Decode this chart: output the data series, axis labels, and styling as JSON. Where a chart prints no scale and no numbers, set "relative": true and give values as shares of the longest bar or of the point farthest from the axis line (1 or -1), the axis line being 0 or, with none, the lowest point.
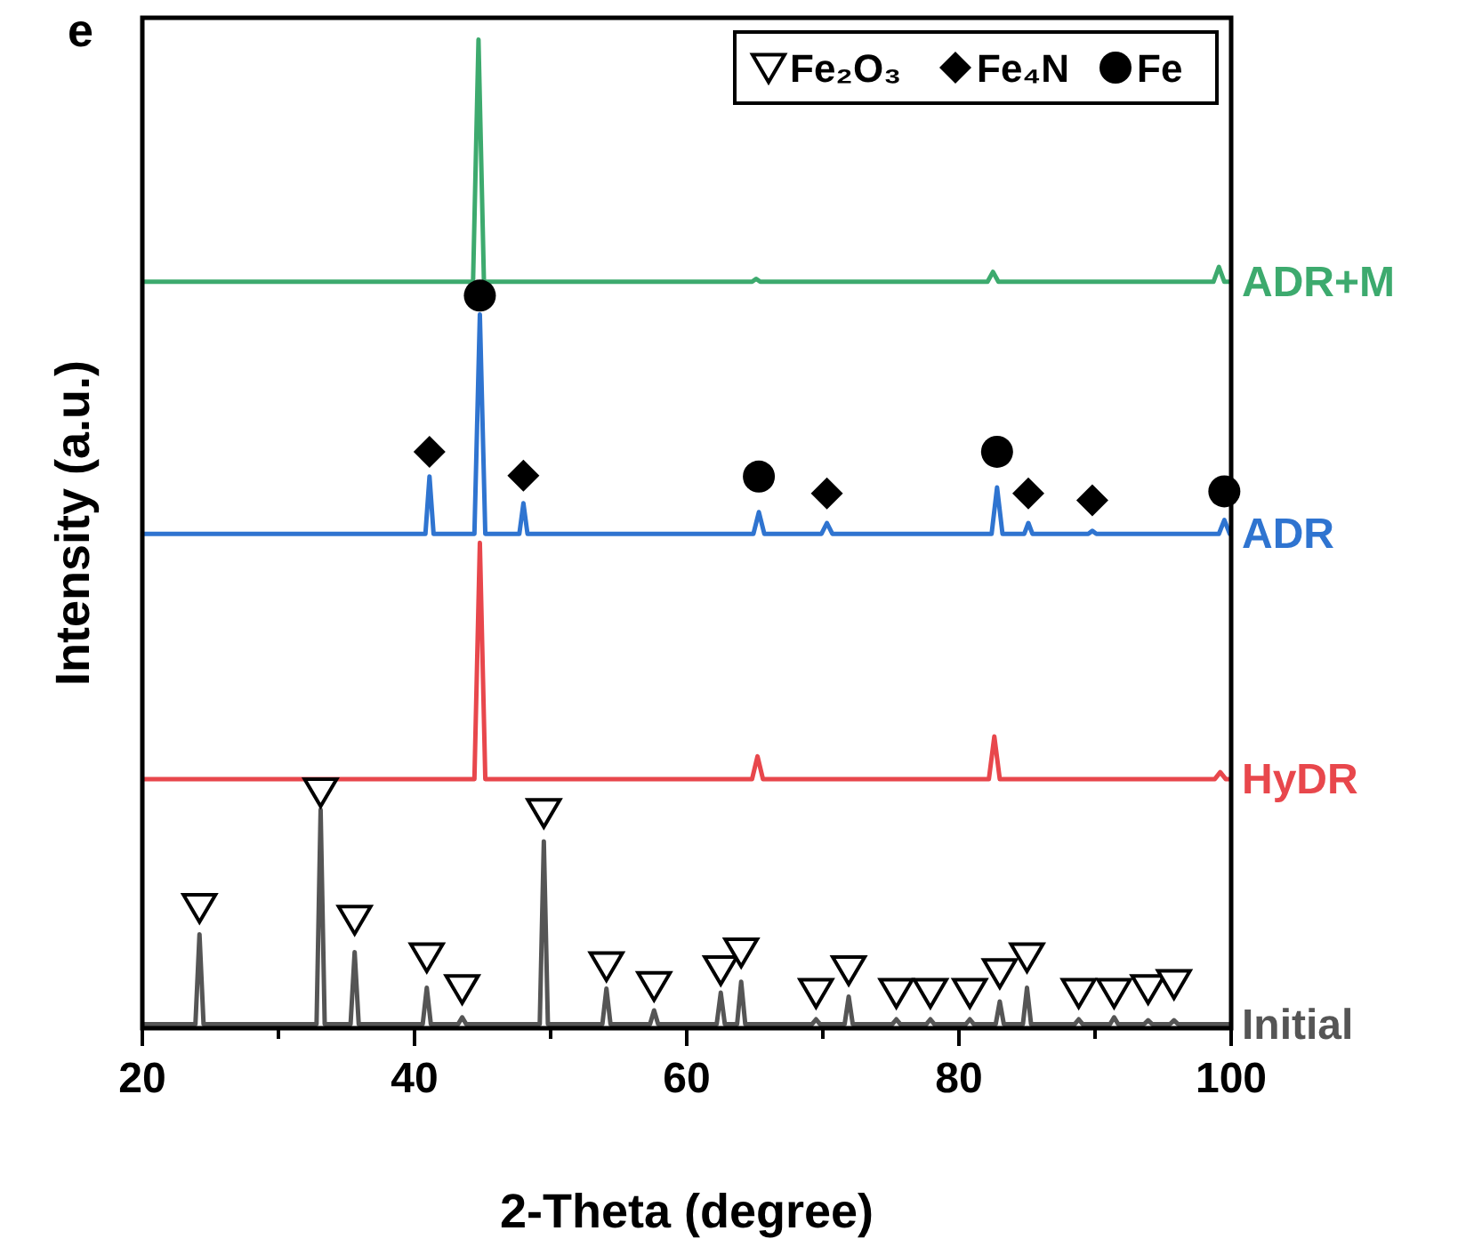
{
  "chart_data": {
    "type": "line",
    "relative": true,
    "xlabel": "2-Theta (degree)",
    "ylabel": "Intensity (a.u.)",
    "annotations": [
      "e"
    ],
    "xlim": [
      20,
      100
    ],
    "xticks": [
      20,
      {
        "value": 30,
        "label": null
      },
      40,
      {
        "value": 50,
        "label": null
      },
      60,
      {
        "value": 70,
        "label": null
      },
      80,
      {
        "value": 90,
        "label": null
      },
      100
    ],
    "legend": "top right",
    "grid": false,
    "line_style": "solid",
    "series": [
      {
        "name": "ADR+M",
        "color": "#3daa6e",
        "x": [
          20,
          44.3,
          44.7,
          45.1,
          64.8,
          65.1,
          65.4,
          82.1,
          82.5,
          82.9,
          98.7,
          99.1,
          99.5,
          100
        ],
        "values": [
          0.755,
          0.755,
          1.0,
          0.755,
          0.755,
          0.758,
          0.755,
          0.755,
          0.765,
          0.755,
          0.755,
          0.77,
          0.755,
          0.755
        ]
      },
      {
        "name": "ADR",
        "color": "#2f74d0",
        "x": [
          20,
          40.8,
          41.1,
          41.4,
          44.4,
          44.8,
          45.2,
          47.7,
          48.0,
          48.3,
          64.9,
          65.3,
          65.7,
          69.9,
          70.3,
          70.7,
          82.4,
          82.8,
          83.2,
          84.8,
          85.1,
          85.4,
          89.5,
          89.8,
          90.1,
          99.1,
          99.5,
          99.9,
          100
        ],
        "values": [
          0.5,
          0.5,
          0.558,
          0.5,
          0.5,
          0.722,
          0.5,
          0.5,
          0.531,
          0.5,
          0.5,
          0.522,
          0.5,
          0.5,
          0.511,
          0.5,
          0.5,
          0.547,
          0.5,
          0.5,
          0.511,
          0.5,
          0.5,
          0.503,
          0.5,
          0.5,
          0.514,
          0.5,
          0.5
        ]
      },
      {
        "name": "HyDR",
        "color": "#e8474c",
        "x": [
          20,
          44.4,
          44.8,
          45.2,
          64.8,
          65.2,
          65.6,
          82.2,
          82.6,
          83.0,
          98.8,
          99.2,
          99.6,
          100
        ],
        "values": [
          0.252,
          0.252,
          0.491,
          0.252,
          0.252,
          0.275,
          0.252,
          0.252,
          0.295,
          0.252,
          0.252,
          0.259,
          0.252,
          0.252
        ]
      },
      {
        "name": "Initial",
        "color": "#555555",
        "x": [
          20,
          23.9,
          24.2,
          24.5,
          32.8,
          33.1,
          33.4,
          35.3,
          35.6,
          35.9,
          40.6,
          40.9,
          41.2,
          43.2,
          43.5,
          43.8,
          49.2,
          49.5,
          49.8,
          53.8,
          54.1,
          54.4,
          57.3,
          57.6,
          57.9,
          62.2,
          62.5,
          62.8,
          63.7,
          64.0,
          64.3,
          69.2,
          69.5,
          69.8,
          71.6,
          71.9,
          72.2,
          75.1,
          75.4,
          75.7,
          77.6,
          77.9,
          78.2,
          80.5,
          80.8,
          81.1,
          82.7,
          83.0,
          83.3,
          84.7,
          85.0,
          85.3,
          88.5,
          88.8,
          89.1,
          91.1,
          91.4,
          91.7,
          93.6,
          93.9,
          94.2,
          95.5,
          95.8,
          96.1,
          100
        ],
        "values": [
          0.004,
          0.004,
          0.095,
          0.004,
          0.004,
          0.221,
          0.004,
          0.004,
          0.077,
          0.004,
          0.004,
          0.041,
          0.004,
          0.004,
          0.011,
          0.004,
          0.004,
          0.189,
          0.004,
          0.004,
          0.04,
          0.004,
          0.004,
          0.018,
          0.004,
          0.004,
          0.036,
          0.004,
          0.004,
          0.047,
          0.004,
          0.004,
          0.009,
          0.004,
          0.004,
          0.032,
          0.004,
          0.004,
          0.009,
          0.004,
          0.004,
          0.009,
          0.004,
          0.004,
          0.009,
          0.004,
          0.004,
          0.027,
          0.004,
          0.004,
          0.041,
          0.004,
          0.004,
          0.009,
          0.004,
          0.004,
          0.011,
          0.004,
          0.004,
          0.008,
          0.004,
          0.004,
          0.008,
          0.004,
          0.004
        ]
      },
      {
        "name": "Fe₂O₃",
        "type": "scatter",
        "marker": "triangle",
        "color": "#000000",
        "x": [
          24.2,
          33.1,
          35.6,
          40.9,
          43.5,
          49.5,
          54.1,
          57.6,
          62.5,
          64.0,
          69.5,
          71.9,
          75.4,
          77.9,
          80.8,
          83.0,
          85.0,
          88.8,
          91.4,
          93.9,
          95.8
        ],
        "values": [
          0.122,
          0.239,
          0.11,
          0.072,
          0.04,
          0.218,
          0.063,
          0.043,
          0.059,
          0.077,
          0.036,
          0.059,
          0.036,
          0.036,
          0.036,
          0.056,
          0.072,
          0.036,
          0.036,
          0.04,
          0.045
        ]
      },
      {
        "name": "Fe₄N",
        "type": "scatter",
        "marker": "diamond",
        "color": "#000000",
        "x": [
          41.1,
          48.0,
          70.3,
          85.1,
          89.8
        ],
        "values": [
          0.583,
          0.559,
          0.541,
          0.541,
          0.534
        ]
      },
      {
        "name": "Fe",
        "type": "scatter",
        "marker": "circle",
        "color": "#000000",
        "x": [
          44.8,
          65.3,
          82.8,
          99.5
        ],
        "values": [
          0.741,
          0.558,
          0.583,
          0.543
        ]
      }
    ]
  }
}
